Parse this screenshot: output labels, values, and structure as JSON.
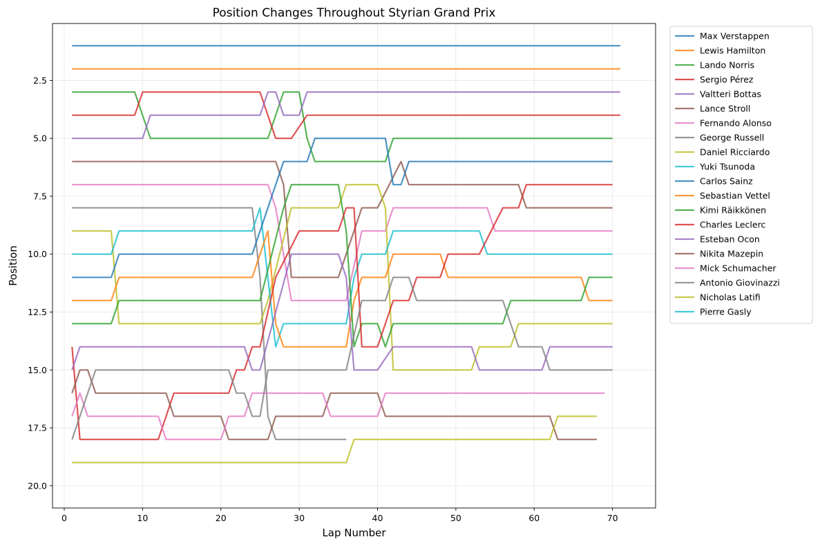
{
  "chart_data": {
    "type": "line",
    "title": "Position Changes Throughout Styrian Grand Prix",
    "xlabel": "Lap Number",
    "ylabel": "Position",
    "xlim": [
      -1.5,
      75.5
    ],
    "ylim": [
      20.96,
      0.04
    ],
    "y_inverted": true,
    "x_ticks": [
      0,
      10,
      20,
      30,
      40,
      50,
      60,
      70
    ],
    "y_ticks": [
      2.5,
      5.0,
      7.5,
      10.0,
      12.5,
      15.0,
      17.5,
      20.0
    ],
    "y_tick_labels": [
      "2.5",
      "5.0",
      "7.5",
      "10.0",
      "12.5",
      "15.0",
      "17.5",
      "20.0"
    ],
    "grid": true,
    "legend_placement": "outside-top-right",
    "series": [
      {
        "name": "Max Verstappen",
        "color": "#1f77b4",
        "x": [
          1,
          71
        ],
        "y": [
          1,
          1
        ]
      },
      {
        "name": "Lewis Hamilton",
        "color": "#ff7f0e",
        "x": [
          1,
          71
        ],
        "y": [
          2,
          2
        ]
      },
      {
        "name": "Lando Norris",
        "color": "#2ca02c",
        "x": [
          1,
          9,
          11,
          26,
          28,
          30,
          31,
          32,
          41,
          42,
          70
        ],
        "y": [
          3,
          3,
          5,
          5,
          3,
          3,
          5,
          6,
          6,
          5,
          5
        ]
      },
      {
        "name": "Sergio Pérez",
        "color": "#d62728",
        "x": [
          1,
          9,
          10,
          25,
          27,
          29,
          31,
          71
        ],
        "y": [
          4,
          4,
          3,
          3,
          5,
          5,
          4,
          4
        ]
      },
      {
        "name": "Valtteri Bottas",
        "color": "#9467bd",
        "x": [
          1,
          10,
          11,
          25,
          26,
          27,
          28,
          30,
          31,
          71
        ],
        "y": [
          5,
          5,
          4,
          4,
          3,
          3,
          4,
          4,
          3,
          3
        ]
      },
      {
        "name": "Lance Stroll",
        "color": "#8c564b",
        "x": [
          1,
          27,
          28,
          29,
          35,
          38,
          40,
          43,
          44,
          58,
          59,
          70
        ],
        "y": [
          6,
          6,
          7,
          11,
          11,
          8,
          8,
          6,
          7,
          7,
          8,
          8
        ]
      },
      {
        "name": "Fernando Alonso",
        "color": "#e377c2",
        "x": [
          1,
          26,
          27,
          29,
          36,
          38,
          40,
          41,
          42,
          54,
          55,
          70
        ],
        "y": [
          7,
          7,
          8,
          12,
          12,
          9,
          9,
          9,
          8,
          8,
          9,
          9
        ]
      },
      {
        "name": "George Russell",
        "color": "#7f7f7f",
        "x": [
          1,
          24,
          25,
          26,
          27,
          36
        ],
        "y": [
          8,
          8,
          11,
          17,
          18,
          18
        ]
      },
      {
        "name": "Daniel Ricciardo",
        "color": "#bcbd22",
        "x": [
          1,
          6,
          7,
          25,
          26,
          29,
          35,
          36,
          40,
          41,
          42,
          52,
          53,
          57,
          58,
          70
        ],
        "y": [
          9,
          9,
          13,
          13,
          12,
          8,
          8,
          7,
          7,
          8,
          15,
          15,
          14,
          14,
          13,
          13
        ]
      },
      {
        "name": "Yuki Tsunoda",
        "color": "#17becf",
        "x": [
          1,
          6,
          7,
          24,
          25,
          27,
          28,
          36,
          37,
          38,
          41,
          42,
          53,
          54,
          70
        ],
        "y": [
          10,
          10,
          9,
          9,
          8,
          14,
          13,
          13,
          11,
          10,
          10,
          9,
          9,
          10,
          10
        ]
      },
      {
        "name": "Carlos Sainz",
        "color": "#1f77b4",
        "x": [
          1,
          6,
          7,
          24,
          28,
          31,
          32,
          41,
          42,
          43,
          44,
          70
        ],
        "y": [
          11,
          11,
          10,
          10,
          6,
          6,
          5,
          5,
          7,
          7,
          6,
          6
        ]
      },
      {
        "name": "Sebastian Vettel",
        "color": "#ff7f0e",
        "x": [
          1,
          6,
          7,
          24,
          26,
          27,
          28,
          36,
          37,
          38,
          41,
          42,
          48,
          49,
          66,
          67,
          70
        ],
        "y": [
          12,
          12,
          11,
          11,
          9,
          13,
          14,
          14,
          12,
          11,
          11,
          10,
          10,
          11,
          11,
          12,
          12
        ]
      },
      {
        "name": "Kimi Räikkönen",
        "color": "#2ca02c",
        "x": [
          1,
          6,
          7,
          25,
          28,
          29,
          35,
          36,
          37,
          38,
          40,
          41,
          42,
          56,
          57,
          66,
          67,
          70
        ],
        "y": [
          13,
          13,
          12,
          12,
          8,
          7,
          7,
          9,
          14,
          13,
          13,
          14,
          13,
          13,
          12,
          12,
          11,
          11
        ]
      },
      {
        "name": "Charles Leclerc",
        "color": "#d62728",
        "x": [
          1,
          2,
          12,
          14,
          21,
          22,
          23,
          24,
          25,
          27,
          30,
          35,
          36,
          37,
          38,
          40,
          42,
          43,
          44,
          45,
          48,
          49,
          53,
          56,
          58,
          59,
          70
        ],
        "y": [
          14,
          18,
          18,
          16,
          16,
          15,
          15,
          14,
          14,
          11,
          9,
          9,
          8,
          8,
          14,
          14,
          12,
          12,
          12,
          11,
          11,
          10,
          10,
          8,
          8,
          7,
          7
        ]
      },
      {
        "name": "Esteban Ocon",
        "color": "#9467bd",
        "x": [
          1,
          2,
          23,
          24,
          25,
          29,
          35,
          36,
          37,
          40,
          42,
          52,
          53,
          61,
          62,
          70
        ],
        "y": [
          15,
          14,
          14,
          15,
          15,
          10,
          10,
          11,
          15,
          15,
          14,
          14,
          15,
          15,
          14,
          14
        ]
      },
      {
        "name": "Nikita Mazepin",
        "color": "#8c564b",
        "x": [
          1,
          2,
          3,
          4,
          13,
          14,
          20,
          21,
          26,
          27,
          33,
          34,
          40,
          41,
          62,
          63,
          68
        ],
        "y": [
          16,
          15,
          15,
          16,
          16,
          17,
          17,
          18,
          18,
          17,
          17,
          16,
          16,
          17,
          17,
          18,
          18
        ]
      },
      {
        "name": "Mick Schumacher",
        "color": "#e377c2",
        "x": [
          1,
          2,
          3,
          12,
          13,
          20,
          21,
          23,
          24,
          33,
          34,
          40,
          41,
          69
        ],
        "y": [
          17,
          16,
          17,
          17,
          18,
          18,
          17,
          17,
          16,
          16,
          17,
          17,
          16,
          16
        ]
      },
      {
        "name": "Antonio Giovinazzi",
        "color": "#7f7f7f",
        "x": [
          1,
          4,
          21,
          22,
          23,
          24,
          25,
          26,
          36,
          38,
          41,
          42,
          44,
          45,
          56,
          58,
          61,
          62,
          70
        ],
        "y": [
          18,
          15,
          15,
          16,
          16,
          17,
          17,
          15,
          15,
          12,
          12,
          11,
          11,
          12,
          12,
          14,
          14,
          15,
          15
        ]
      },
      {
        "name": "Nicholas Latifi",
        "color": "#bcbd22",
        "x": [
          1,
          36,
          37,
          62,
          63,
          68
        ],
        "y": [
          19,
          19,
          18,
          18,
          17,
          17
        ]
      },
      {
        "name": "Pierre Gasly",
        "color": "#17becf",
        "x": [],
        "y": []
      }
    ]
  }
}
